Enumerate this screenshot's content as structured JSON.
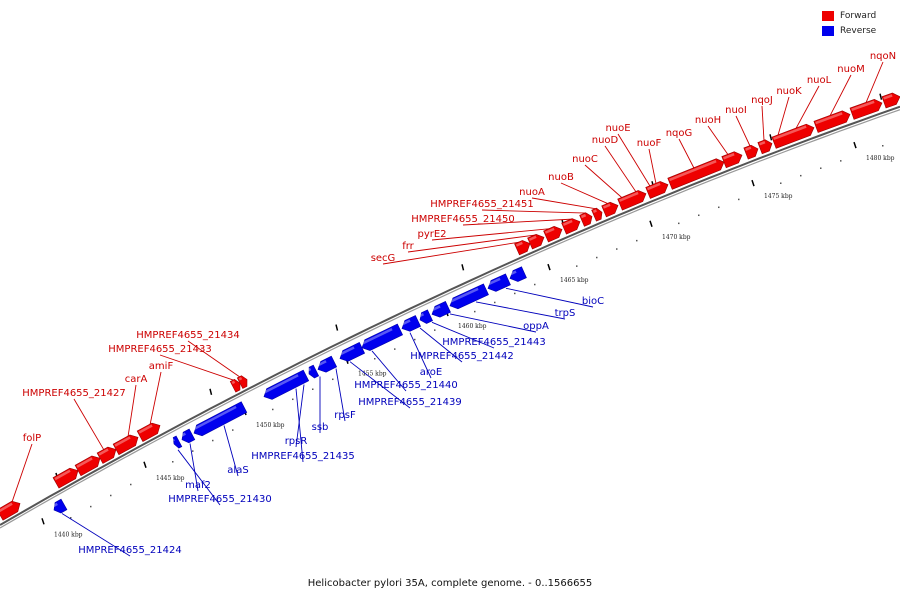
{
  "caption": "Helicobacter pylori 35A, complete genome. - 0..1566655",
  "legend": {
    "forward": {
      "label": "Forward",
      "color": "#ee0000"
    },
    "reverse": {
      "label": "Reverse",
      "color": "#0000ee"
    }
  },
  "axis": {
    "unit": "kbp",
    "ticks": [
      1440,
      1445,
      1450,
      1455,
      1460,
      1465,
      1470,
      1475,
      1480
    ]
  },
  "genes": {
    "forward": [
      "folP",
      "HMPREF4655_21427",
      "carA",
      "amiF",
      "HMPREF4655_21433",
      "HMPREF4655_21434",
      "secG",
      "frr",
      "pyrE2",
      "HMPREF4655_21450",
      "HMPREF4655_21451",
      "nuoA",
      "nuoB",
      "nuoC",
      "nuoD",
      "nuoE",
      "nuoF",
      "nqoG",
      "nuoH",
      "nuoI",
      "nqoJ",
      "nuoK",
      "nuoL",
      "nuoM",
      "nqoN"
    ],
    "reverse": [
      "HMPREF4655_21424",
      "HMPREF4655_21430",
      "maf2",
      "alaS",
      "HMPREF4655_21435",
      "rpsR",
      "ssb",
      "rpsF",
      "HMPREF4655_21439",
      "HMPREF4655_21440",
      "aroE",
      "HMPREF4655_21442",
      "HMPREF4655_21443",
      "oppA",
      "trpS",
      "bioC"
    ]
  }
}
